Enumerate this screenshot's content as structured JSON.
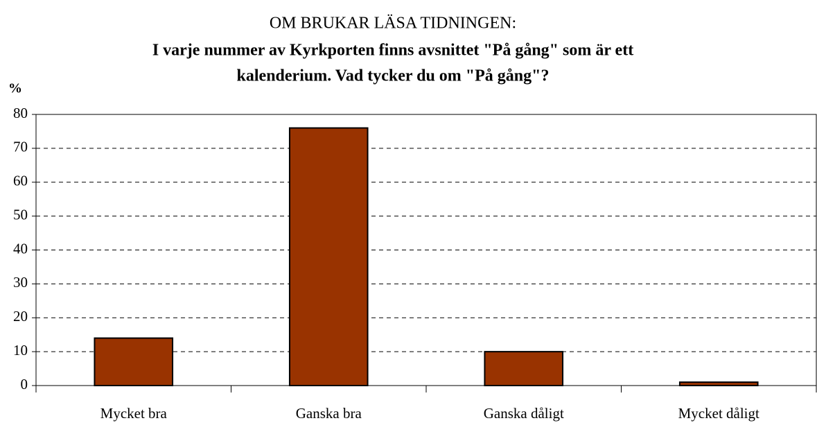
{
  "chart_data": {
    "type": "bar",
    "title": "OM BRUKAR LÄSA TIDNINGEN:",
    "subtitle": [
      "I varje nummer av Kyrkporten finns avsnittet \"På gång\" som är ett",
      "kalenderium. Vad tycker du om \"På gång\"?"
    ],
    "y_label": "%",
    "categories": [
      "Mycket bra",
      "Ganska bra",
      "Ganska dåligt",
      "Mycket dåligt"
    ],
    "values": [
      14,
      76,
      10,
      1
    ],
    "color": "#993300",
    "ylim": [
      0,
      80
    ],
    "yticks": [
      0,
      10,
      20,
      30,
      40,
      50,
      60,
      70,
      80
    ],
    "grid": true
  }
}
